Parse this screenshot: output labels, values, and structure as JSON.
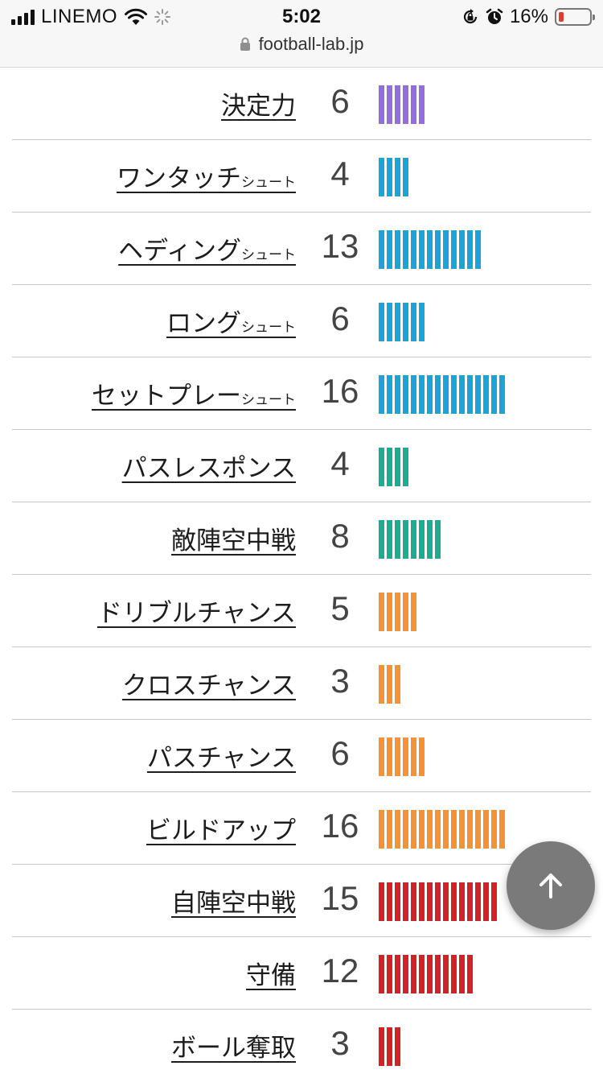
{
  "status_bar": {
    "carrier": "LINEMO",
    "time": "5:02",
    "battery": "16%",
    "battery_level": 16
  },
  "address_bar": {
    "url": "football-lab.jp"
  },
  "colors": {
    "purple": "#9370d8",
    "blue": "#1ea4d4",
    "teal": "#1fab8f",
    "orange": "#f39237",
    "red": "#cf2229"
  },
  "rows": [
    {
      "label": "決定力",
      "suffix": "",
      "value": "6",
      "color": "#9370d8"
    },
    {
      "label": "ワンタッチ",
      "suffix": "シュート",
      "value": "4",
      "color": "#1ea4d4"
    },
    {
      "label": "ヘディング",
      "suffix": "シュート",
      "value": "13",
      "color": "#1ea4d4"
    },
    {
      "label": "ロング",
      "suffix": "シュート",
      "value": "6",
      "color": "#1ea4d4"
    },
    {
      "label": "セットプレー",
      "suffix": "シュート",
      "value": "16",
      "color": "#1ea4d4"
    },
    {
      "label": "パスレスポンス",
      "suffix": "",
      "value": "4",
      "color": "#1fab8f"
    },
    {
      "label": "敵陣空中戦",
      "suffix": "",
      "value": "8",
      "color": "#1fab8f"
    },
    {
      "label": "ドリブルチャンス",
      "suffix": "",
      "value": "5",
      "color": "#f39237"
    },
    {
      "label": "クロスチャンス",
      "suffix": "",
      "value": "3",
      "color": "#f39237"
    },
    {
      "label": "パスチャンス",
      "suffix": "",
      "value": "6",
      "color": "#f39237"
    },
    {
      "label": "ビルドアップ",
      "suffix": "",
      "value": "16",
      "color": "#f39237"
    },
    {
      "label": "自陣空中戦",
      "suffix": "",
      "value": "15",
      "color": "#cf2229"
    },
    {
      "label": "守備",
      "suffix": "",
      "value": "12",
      "color": "#cf2229"
    },
    {
      "label": "ボール奪取",
      "suffix": "",
      "value": "3",
      "color": "#cf2229"
    }
  ],
  "scroll_top_icon": "arrow-up-icon"
}
